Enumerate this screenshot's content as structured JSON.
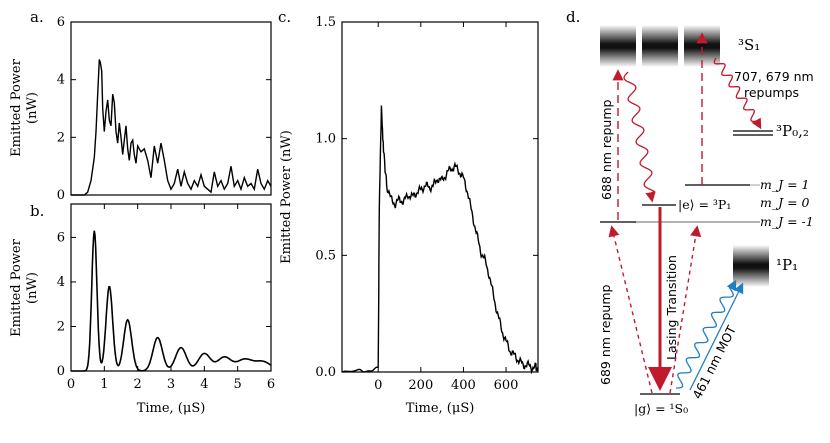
{
  "panels": {
    "a": "a.",
    "b": "b.",
    "c": "c.",
    "d": "d."
  },
  "chart_data": [
    {
      "id": "a",
      "type": "line",
      "xlabel": "",
      "ylabel": "Emitted Power\n(nW)",
      "xlim": [
        0,
        6
      ],
      "ylim": [
        0,
        6
      ],
      "xticks": [],
      "yticks": [
        0,
        2,
        4,
        6
      ],
      "x": [
        0.0,
        0.4,
        0.5,
        0.6,
        0.7,
        0.75,
        0.8,
        0.85,
        0.88,
        0.92,
        0.95,
        1.0,
        1.05,
        1.1,
        1.15,
        1.2,
        1.25,
        1.3,
        1.35,
        1.4,
        1.45,
        1.5,
        1.55,
        1.6,
        1.65,
        1.7,
        1.75,
        1.8,
        1.85,
        1.9,
        1.95,
        2.0,
        2.1,
        2.2,
        2.3,
        2.4,
        2.5,
        2.6,
        2.7,
        2.8,
        2.9,
        3.0,
        3.1,
        3.2,
        3.3,
        3.4,
        3.5,
        3.6,
        3.7,
        3.8,
        3.9,
        4.0,
        4.1,
        4.2,
        4.3,
        4.4,
        4.5,
        4.6,
        4.7,
        4.8,
        4.9,
        5.0,
        5.1,
        5.2,
        5.3,
        5.4,
        5.5,
        5.6,
        5.7,
        5.8,
        5.9,
        6.0
      ],
      "y": [
        0,
        0,
        0.1,
        0.5,
        1.3,
        2.2,
        3.5,
        4.7,
        4.6,
        4.3,
        3.0,
        2.2,
        2.9,
        3.3,
        2.6,
        2.4,
        3.5,
        3.2,
        2.2,
        1.8,
        2.5,
        2.0,
        1.4,
        1.9,
        2.4,
        1.6,
        1.2,
        1.8,
        1.9,
        1.4,
        1.1,
        1.7,
        1.5,
        1.6,
        1.2,
        0.6,
        1.7,
        1.1,
        1.8,
        1.2,
        0.5,
        0.2,
        0.4,
        0.9,
        0.3,
        0.8,
        0.4,
        0.2,
        0.5,
        0.3,
        0.7,
        0.3,
        0.2,
        0.1,
        0.8,
        0.3,
        0.5,
        0.2,
        0.4,
        1.0,
        0.3,
        0.5,
        0.2,
        0.6,
        0.3,
        0.4,
        0.2,
        0.9,
        0.4,
        0.2,
        0.5,
        0.3
      ]
    },
    {
      "id": "b",
      "type": "line",
      "xlabel": "Time, (μS)",
      "ylabel": "Emitted Power\n(nW)",
      "xlim": [
        0,
        6
      ],
      "ylim": [
        0,
        7.5
      ],
      "xticks": [
        0,
        1,
        2,
        3,
        4,
        5,
        6
      ],
      "yticks": [
        0,
        2,
        4,
        6
      ],
      "peaks": [
        [
          0.7,
          6.3
        ],
        [
          1.15,
          3.8
        ],
        [
          1.7,
          2.3
        ],
        [
          2.6,
          1.5
        ],
        [
          3.3,
          1.05
        ],
        [
          4.0,
          0.78
        ],
        [
          4.6,
          0.62
        ],
        [
          5.2,
          0.5
        ],
        [
          5.75,
          0.42
        ]
      ]
    },
    {
      "id": "c",
      "type": "line",
      "xlabel": "Time, (μS)",
      "ylabel": "Emitted Power (nW)",
      "xlim": [
        -170,
        750
      ],
      "ylim": [
        0,
        1.5
      ],
      "xticks": [
        0,
        200,
        400,
        600
      ],
      "yticks": [
        0.0,
        0.5,
        1.0,
        1.5
      ],
      "x": [
        -170,
        -100,
        -50,
        0,
        5,
        15,
        25,
        40,
        60,
        80,
        100,
        120,
        140,
        160,
        180,
        200,
        220,
        240,
        260,
        280,
        300,
        320,
        340,
        360,
        380,
        400,
        420,
        440,
        460,
        480,
        500,
        520,
        540,
        560,
        580,
        600,
        620,
        640,
        660,
        680,
        700,
        720,
        740,
        750
      ],
      "y": [
        0.0,
        0.01,
        0.0,
        0.02,
        0.7,
        1.13,
        0.95,
        0.8,
        0.74,
        0.72,
        0.74,
        0.73,
        0.76,
        0.75,
        0.77,
        0.78,
        0.8,
        0.79,
        0.8,
        0.83,
        0.82,
        0.85,
        0.87,
        0.88,
        0.86,
        0.83,
        0.77,
        0.68,
        0.6,
        0.52,
        0.48,
        0.42,
        0.33,
        0.25,
        0.18,
        0.13,
        0.09,
        0.07,
        0.05,
        0.03,
        0.03,
        0.02,
        0.02,
        0.01
      ]
    }
  ],
  "diagram_d": {
    "S1_label": "³S₁",
    "P02_label": "³P₀,₂",
    "P1_label": "¹P₁",
    "S0_label": "|g⟩ = ¹S₀",
    "e_label": "|e⟩ = ³P₁",
    "mJ1": "m_J = 1",
    "mJ0": "m_J = 0",
    "mJm1": "m_J = -1",
    "repump707": "707, 679 nm",
    "repumps": "repumps",
    "repump688": "688 nm repump",
    "repump689": "689 nm repump",
    "lasing": "Lasing Transition",
    "mot461": "461 nm MOT"
  },
  "colors": {
    "red": "#c01b2d",
    "blue": "#1f7fc4",
    "line": "#000000"
  }
}
